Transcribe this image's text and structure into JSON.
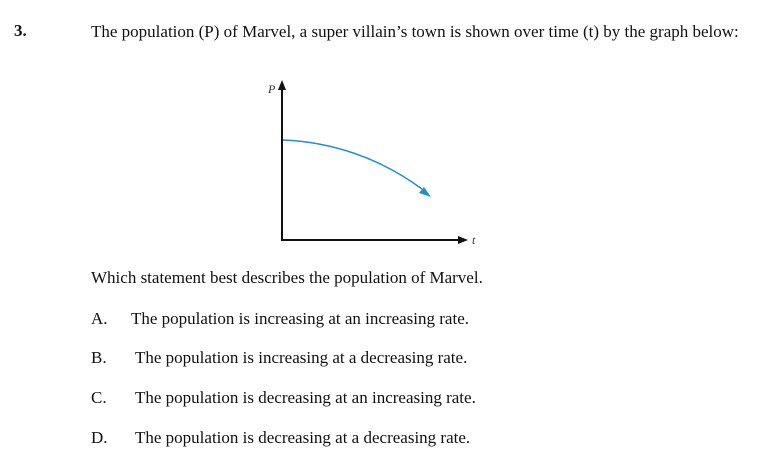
{
  "question": {
    "number": "3.",
    "stem": "The population (P) of Marvel, a super villain’s town is shown over time (t) by the graph below:",
    "prompt": "Which statement best describes the population of Marvel."
  },
  "graph": {
    "y_axis_label": "P",
    "x_axis_label": "t",
    "curve_color": "#1f8fd0",
    "axis_color": "#111111"
  },
  "choices": [
    {
      "letter": "A.",
      "text": "The population is increasing at an increasing rate."
    },
    {
      "letter": "B.",
      "text": "The population is increasing at a decreasing rate."
    },
    {
      "letter": "C.",
      "text": "The population is decreasing at an increasing rate."
    },
    {
      "letter": "D.",
      "text": "The population is decreasing at a decreasing rate."
    }
  ]
}
